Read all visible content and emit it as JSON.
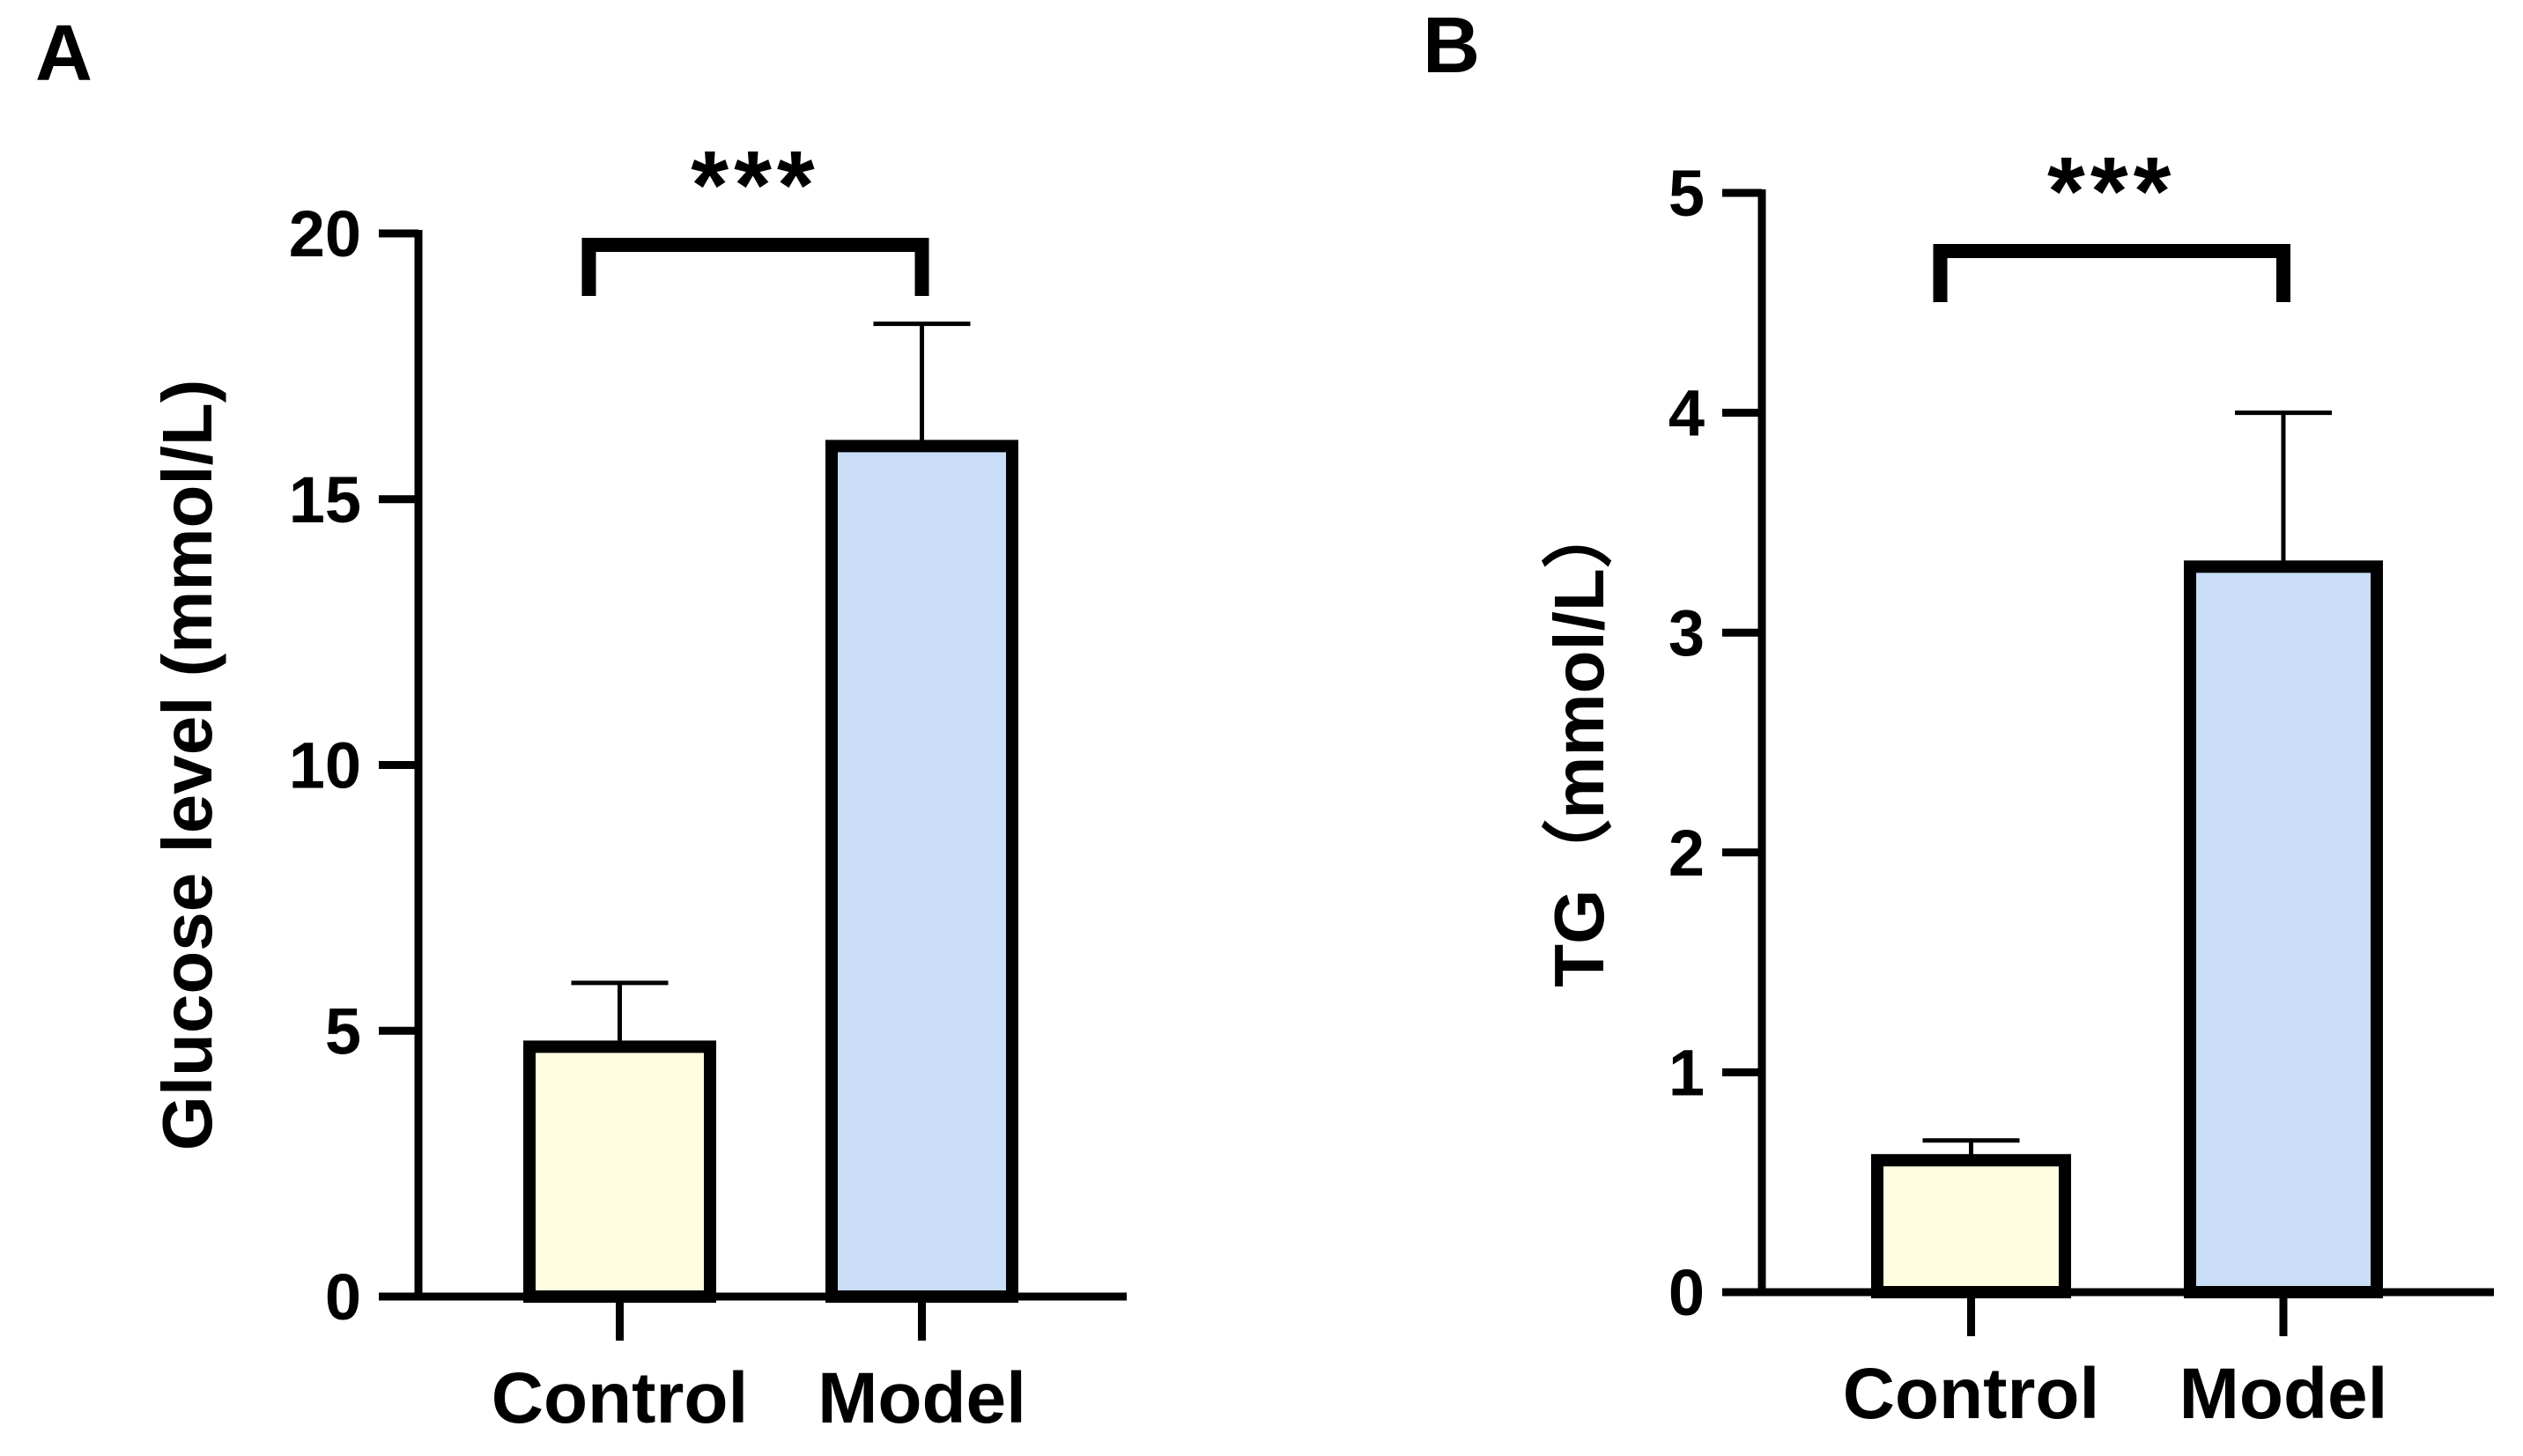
{
  "chart_data": [
    {
      "type": "bar",
      "panel_label": "A",
      "title": "",
      "xlabel": "",
      "ylabel": "Glucose level (mmol/L)",
      "categories": [
        "Control",
        "Model"
      ],
      "values": [
        4.7,
        16.0
      ],
      "error_upper": [
        5.9,
        18.3
      ],
      "ylim": [
        0,
        20
      ],
      "yticks": [
        0,
        5,
        10,
        15,
        20
      ],
      "colors": [
        "#FEFDE0",
        "#C9DDF6"
      ],
      "significance": {
        "from": "Control",
        "to": "Model",
        "label": "***"
      },
      "grid": false
    },
    {
      "type": "bar",
      "panel_label": "B",
      "title": "",
      "xlabel": "",
      "ylabel": "TG（mmol/L）",
      "categories": [
        "Control",
        "Model"
      ],
      "values": [
        0.6,
        3.3
      ],
      "error_upper": [
        0.69,
        4.0
      ],
      "ylim": [
        0,
        5
      ],
      "yticks": [
        0,
        1,
        2,
        3,
        4,
        5
      ],
      "colors": [
        "#FEFDE0",
        "#C9DDF6"
      ],
      "significance": {
        "from": "Control",
        "to": "Model",
        "label": "***"
      },
      "grid": false
    }
  ]
}
